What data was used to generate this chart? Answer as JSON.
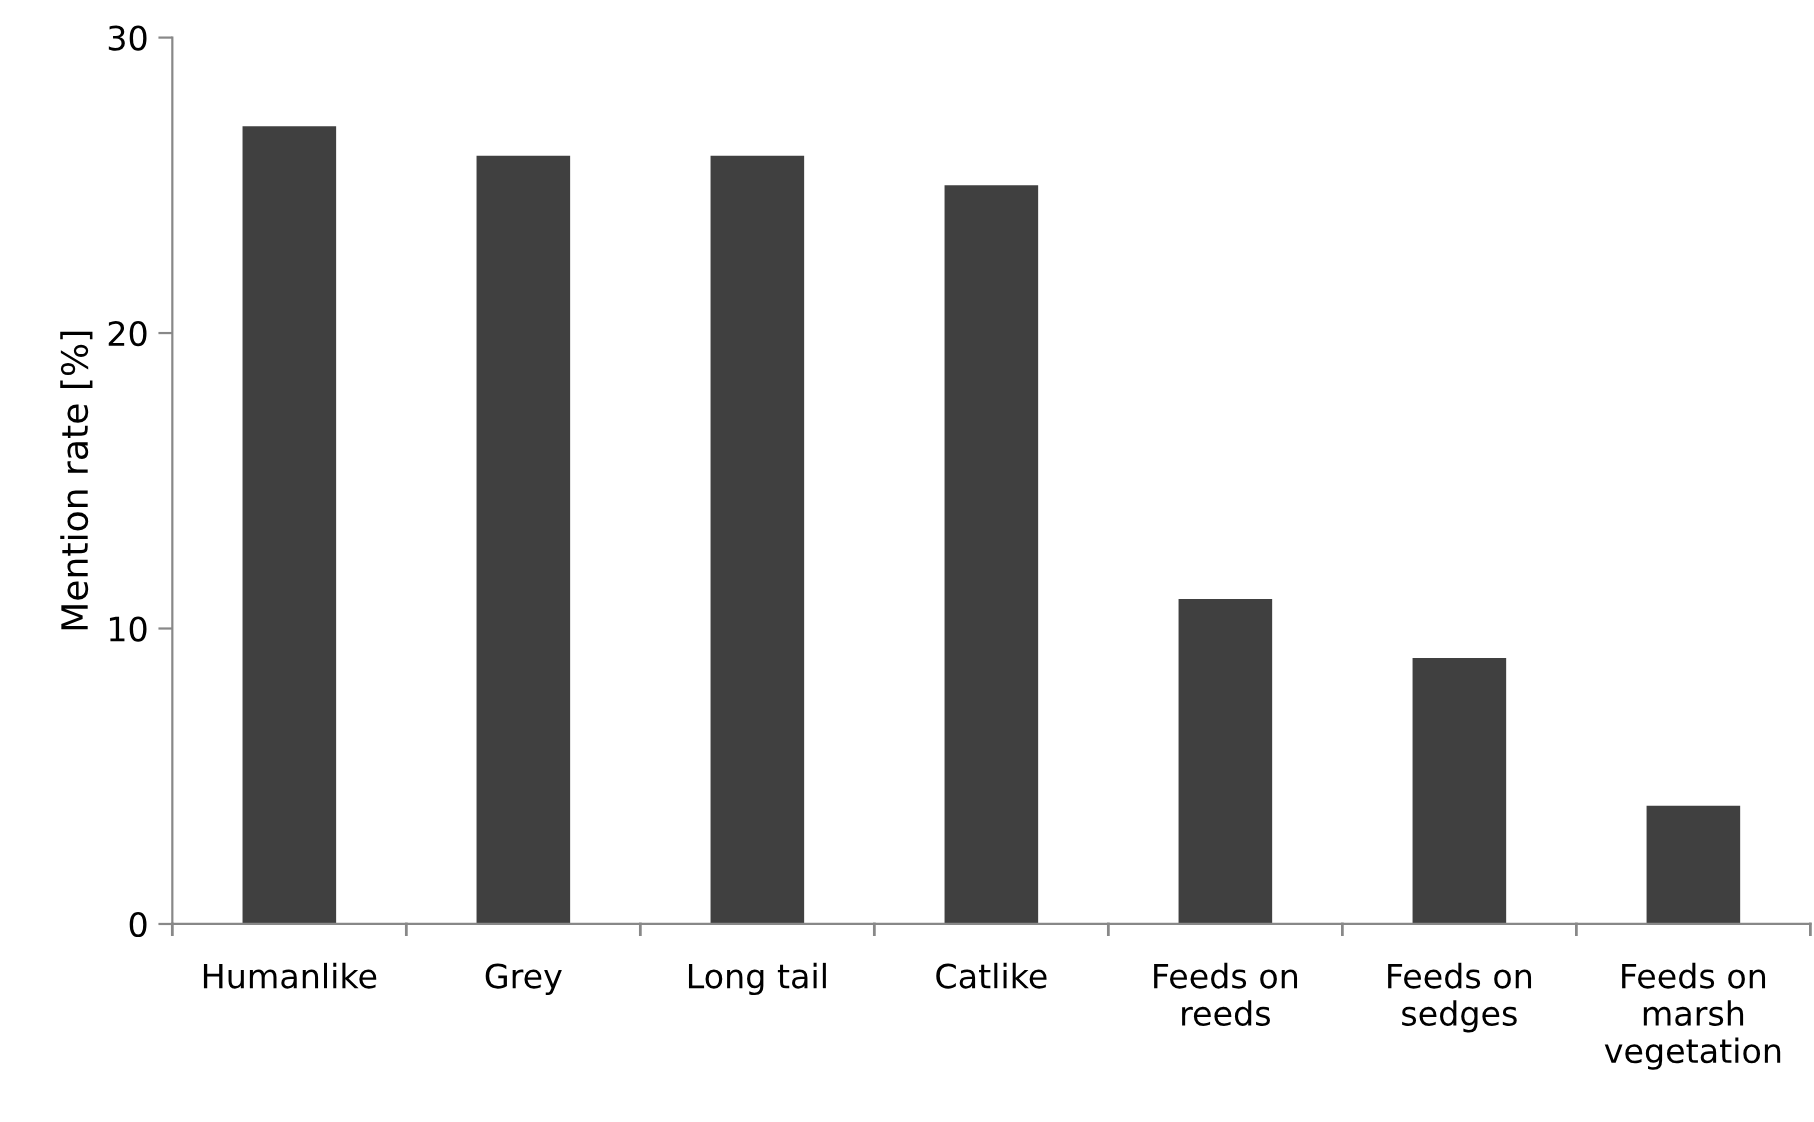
{
  "chart_data": {
    "type": "bar",
    "ylabel": "Mention rate [%]",
    "categories": [
      "Humanlike",
      "Grey",
      "Long tail",
      "Catlike",
      "Feeds on\nreeds",
      "Feeds on\nsedges",
      "Feeds on\nmarsh\nvegetation"
    ],
    "values": [
      27,
      26,
      26,
      25,
      11,
      9,
      4
    ],
    "color": "#404040",
    "ylim": [
      0,
      30
    ],
    "yticks": [
      0,
      10,
      20,
      30
    ],
    "grid": false,
    "legend": false
  }
}
